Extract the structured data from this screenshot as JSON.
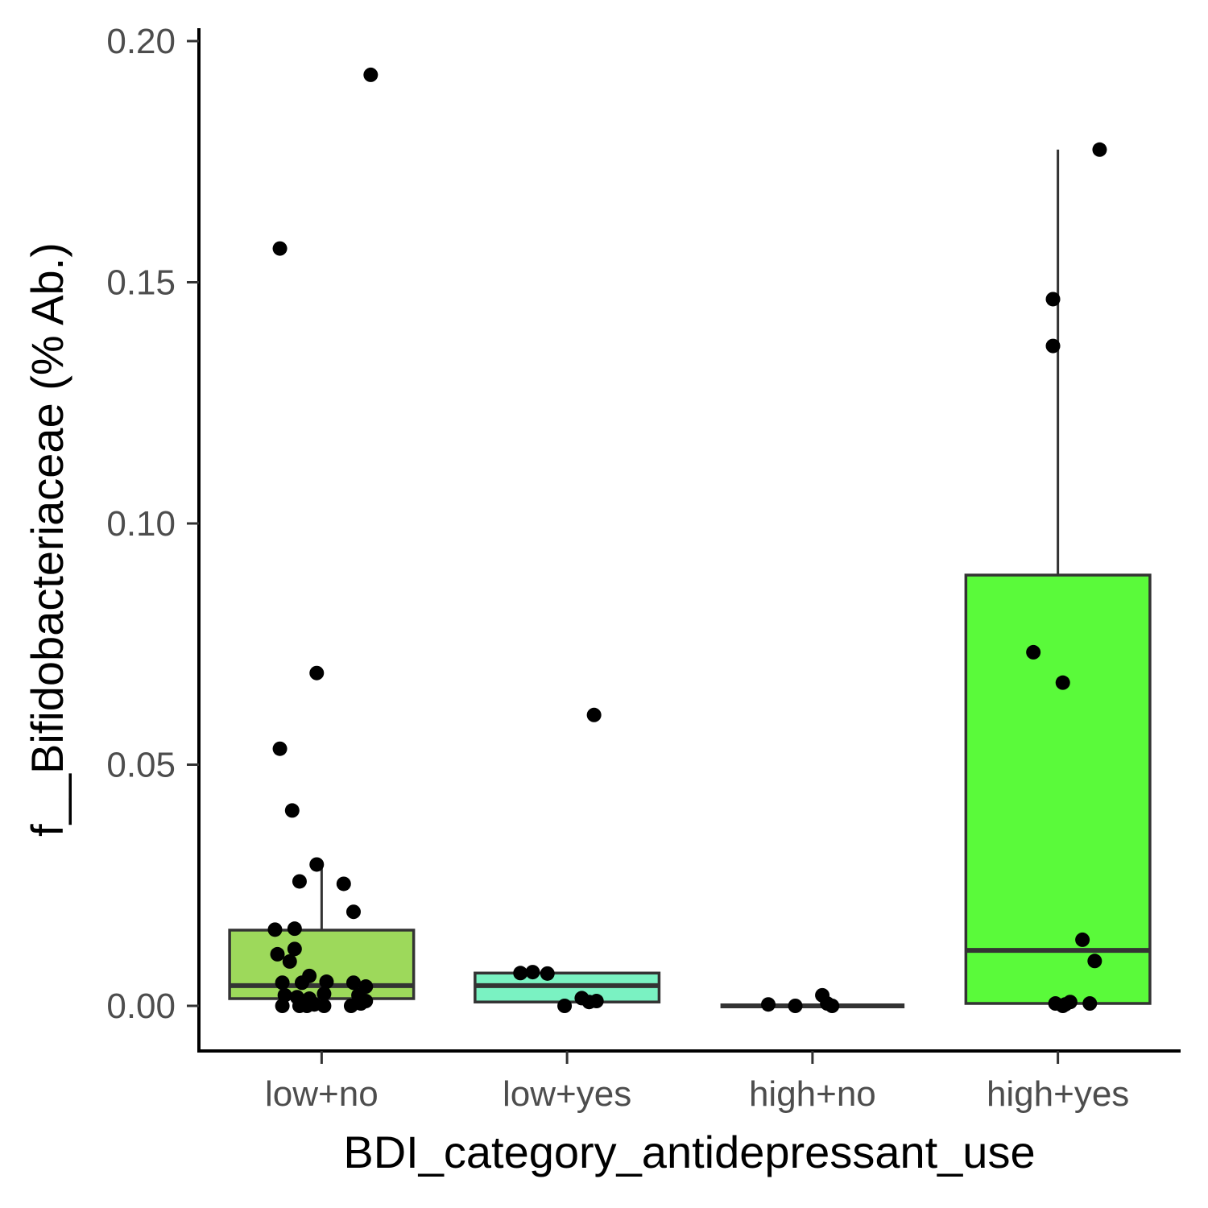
{
  "chart_data": {
    "type": "boxplot",
    "xlabel": "BDI_category_antidepressant_use",
    "ylabel": "f__Bifidobacteriaceae (% Ab.)",
    "ylim": [
      -0.0095,
      0.2025
    ],
    "yticks": [
      {
        "value": 0.0,
        "label": "0.00"
      },
      {
        "value": 0.05,
        "label": "0.05"
      },
      {
        "value": 0.1,
        "label": "0.10"
      },
      {
        "value": 0.15,
        "label": "0.15"
      },
      {
        "value": 0.2,
        "label": "0.20"
      }
    ],
    "grid": false,
    "groups": [
      {
        "label": "low+no",
        "color": "#9dd95b",
        "q1": 0.0015,
        "median": 0.0042,
        "q3": 0.0157,
        "whisker_low": 0.0,
        "whisker_high": 0.029,
        "points": [
          {
            "j": 0.2,
            "y": 0.193
          },
          {
            "j": -0.17,
            "y": 0.157
          },
          {
            "j": -0.02,
            "y": 0.069
          },
          {
            "j": -0.17,
            "y": 0.0533
          },
          {
            "j": -0.12,
            "y": 0.0405
          },
          {
            "j": -0.02,
            "y": 0.0293
          },
          {
            "j": -0.09,
            "y": 0.0258
          },
          {
            "j": 0.09,
            "y": 0.0253
          },
          {
            "j": 0.13,
            "y": 0.0195
          },
          {
            "j": -0.19,
            "y": 0.0158
          },
          {
            "j": -0.11,
            "y": 0.016
          },
          {
            "j": -0.11,
            "y": 0.0118
          },
          {
            "j": -0.18,
            "y": 0.0107
          },
          {
            "j": -0.13,
            "y": 0.0092
          },
          {
            "j": -0.16,
            "y": 0.0048
          },
          {
            "j": -0.05,
            "y": 0.0062
          },
          {
            "j": -0.08,
            "y": 0.0048
          },
          {
            "j": 0.02,
            "y": 0.005
          },
          {
            "j": 0.13,
            "y": 0.0048
          },
          {
            "j": 0.18,
            "y": 0.004
          },
          {
            "j": -0.15,
            "y": 0.0022
          },
          {
            "j": -0.1,
            "y": 0.0018
          },
          {
            "j": -0.05,
            "y": 0.0015
          },
          {
            "j": 0.01,
            "y": 0.0025
          },
          {
            "j": 0.15,
            "y": 0.0022
          },
          {
            "j": 0.18,
            "y": 0.001
          },
          {
            "j": -0.16,
            "y": 0.0
          },
          {
            "j": -0.09,
            "y": 0.0
          },
          {
            "j": -0.06,
            "y": 0.0
          },
          {
            "j": -0.03,
            "y": 0.0003
          },
          {
            "j": 0.01,
            "y": 0.0
          },
          {
            "j": 0.12,
            "y": 0.0
          },
          {
            "j": 0.16,
            "y": 0.0005
          }
        ]
      },
      {
        "label": "low+yes",
        "color": "#7af2c2",
        "q1": 0.0008,
        "median": 0.0042,
        "q3": 0.0068,
        "whisker_low": 0.0,
        "whisker_high": 0.0068,
        "outlier_shown_as_point": true,
        "points": [
          {
            "j": 0.11,
            "y": 0.0603
          },
          {
            "j": -0.19,
            "y": 0.0068
          },
          {
            "j": -0.14,
            "y": 0.007
          },
          {
            "j": -0.08,
            "y": 0.0067
          },
          {
            "j": 0.06,
            "y": 0.0016
          },
          {
            "j": 0.09,
            "y": 0.0008
          },
          {
            "j": 0.12,
            "y": 0.001
          },
          {
            "j": -0.01,
            "y": 0.0
          }
        ]
      },
      {
        "label": "high+no",
        "color": "#4bea38",
        "q1": 0.0,
        "median": 0.0,
        "q3": 0.0,
        "whisker_low": 0.0,
        "whisker_high": 0.0,
        "points": [
          {
            "j": -0.18,
            "y": 0.0003
          },
          {
            "j": -0.07,
            "y": 0.0
          },
          {
            "j": 0.04,
            "y": 0.0022
          },
          {
            "j": 0.06,
            "y": 0.0005
          },
          {
            "j": 0.08,
            "y": 0.0
          }
        ]
      },
      {
        "label": "high+yes",
        "color": "#5afa3a",
        "q1": 0.0005,
        "median": 0.0115,
        "q3": 0.0893,
        "whisker_low": 0.0,
        "whisker_high": 0.1775,
        "points": [
          {
            "j": 0.17,
            "y": 0.1775
          },
          {
            "j": -0.02,
            "y": 0.1465
          },
          {
            "j": -0.02,
            "y": 0.1368
          },
          {
            "j": -0.1,
            "y": 0.0733
          },
          {
            "j": 0.02,
            "y": 0.067
          },
          {
            "j": 0.1,
            "y": 0.0137
          },
          {
            "j": 0.15,
            "y": 0.0093
          },
          {
            "j": -0.01,
            "y": 0.0005
          },
          {
            "j": 0.03,
            "y": 0.0003
          },
          {
            "j": 0.05,
            "y": 0.0008
          },
          {
            "j": 0.13,
            "y": 0.0005
          },
          {
            "j": 0.02,
            "y": 0.0
          }
        ]
      }
    ]
  }
}
